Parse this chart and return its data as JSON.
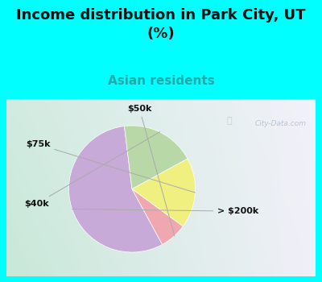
{
  "title": "Income distribution in Park City, UT\n(%)",
  "subtitle": "Asian residents",
  "title_fontsize": 13,
  "subtitle_fontsize": 11,
  "title_color": "#111111",
  "subtitle_color": "#22aaaa",
  "background_color": "#00ffff",
  "chart_bg_left": "#c8e8d8",
  "chart_bg_right": "#f0f0f8",
  "slices": [
    {
      "label": "> $200k",
      "value": 56,
      "color": "#c8aad8"
    },
    {
      "label": "$50k",
      "value": 7,
      "color": "#f0a8b0"
    },
    {
      "label": "$75k",
      "value": 18,
      "color": "#f0f080"
    },
    {
      "label": "$40k",
      "value": 19,
      "color": "#b8d8a8"
    }
  ],
  "label_fontsize": 8,
  "label_color": "#111111",
  "startangle": 97,
  "watermark": "City-Data.com",
  "watermark_color": "#aabbcc"
}
